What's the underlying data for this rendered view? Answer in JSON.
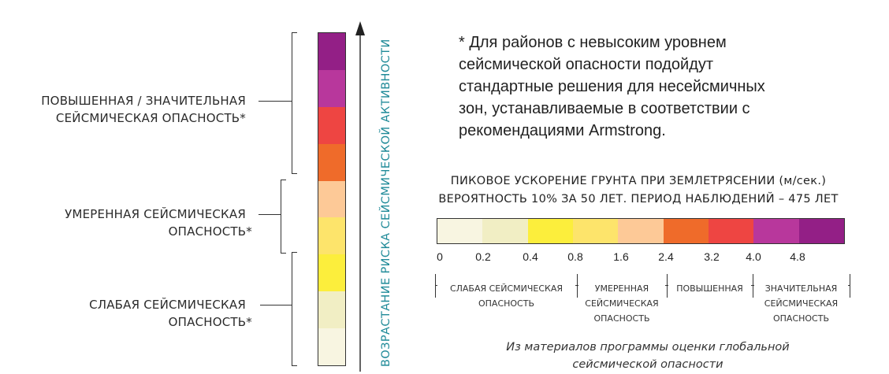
{
  "left_labels": [
    {
      "line1": "ПОВЫШЕННАЯ / ЗНАЧИТЕЛЬНАЯ",
      "line2": "СЕЙСМИЧЕСКАЯ ОПАСНОСТЬ*"
    },
    {
      "line1": "УМЕРЕННАЯ СЕЙСМИЧЕСКАЯ",
      "line2": "ОПАСНОСТЬ*"
    },
    {
      "line1": "СЛАБАЯ СЕЙСМИЧЕСКАЯ",
      "line2": "ОПАСНОСТЬ*"
    }
  ],
  "vertical_scale_colors": [
    "#931f86",
    "#b8379c",
    "#ee4542",
    "#ef6b2a",
    "#fdc997",
    "#fde46b",
    "#fcee3c",
    "#f1eec4",
    "#f8f5e1"
  ],
  "axis_label": "ВОЗРАСТАНИЕ РИСКА СЕЙСМИЧЕСКОЙ АКТИВНОСТИ",
  "note": {
    "line1": "* Для районов с невысоким уровнем",
    "line2": "сейсмической опасности подойдут",
    "line3": "стандартные решения для несейсмичных",
    "line4": "зон, устанавливаемые в соответствии с",
    "line5": "рекомендациями Armstrong."
  },
  "scale_title1": "ПИКОВОЕ УСКОРЕНИЕ ГРУНТА ПРИ ЗЕМЛЕТРЯСЕНИИ (м/сек.)",
  "scale_title2": "ВЕРОЯТНОСТЬ 10% ЗА 50 ЛЕТ. ПЕРИОД НАБЛЮДЕНИЙ – 475 ЛЕТ",
  "horizontal_scale_colors": [
    "#f8f5e1",
    "#f1eec4",
    "#fcee3c",
    "#fde46b",
    "#fdc997",
    "#ef6b2a",
    "#ee4542",
    "#b8379c",
    "#931f86"
  ],
  "ticks": [
    "0",
    "0.2",
    "0.4",
    "0.8",
    "1.6",
    "2.4",
    "3.2",
    "4.0",
    "4.8"
  ],
  "categories": [
    {
      "line1": "СЛАБАЯ СЕЙСМИЧЕСКАЯ",
      "line2": "ОПАСНОСТЬ",
      "line3": ""
    },
    {
      "line1": "УМЕРЕННАЯ",
      "line2": "СЕЙСМИЧЕСКАЯ",
      "line3": "ОПАСНОСТЬ"
    },
    {
      "line1": "ПОВЫШЕННАЯ",
      "line2": "",
      "line3": ""
    },
    {
      "line1": "ЗНАЧИТЕЛЬНАЯ",
      "line2": "СЕЙСМИЧЕСКАЯ",
      "line3": "ОПАСНОСТЬ"
    }
  ],
  "source": {
    "line1": "Из материалов программы оценки глобальной",
    "line2": "сейсмической опасности"
  }
}
